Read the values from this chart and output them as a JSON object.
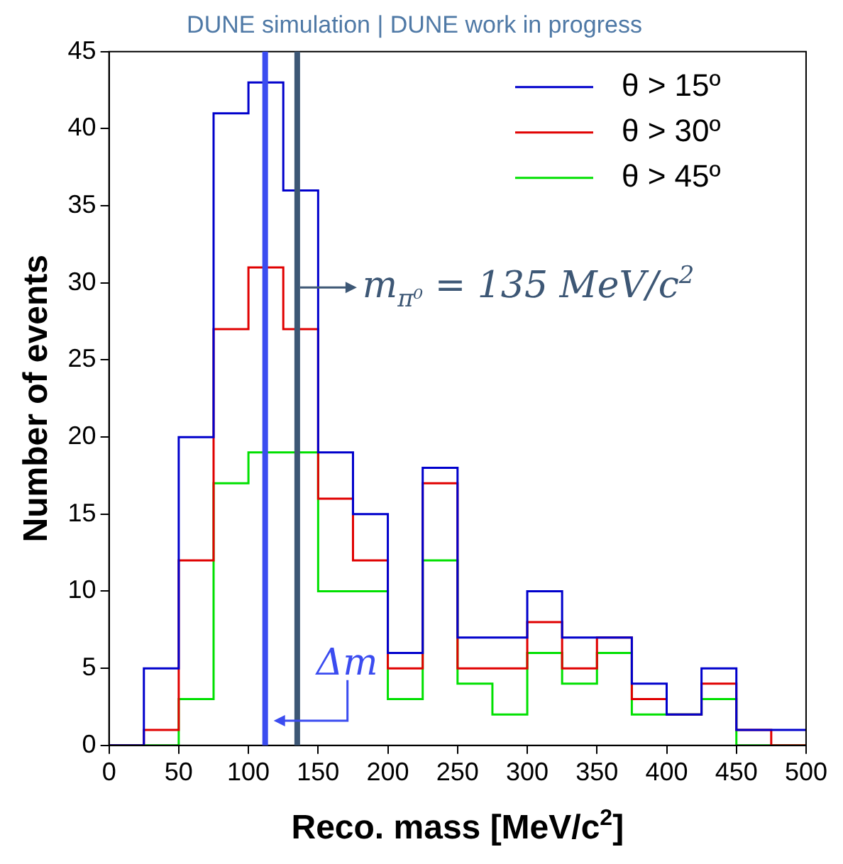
{
  "chart_data": {
    "type": "histogram",
    "title": "DUNE simulation | DUNE work in progress",
    "xlabel": "Reco. mass [MeV/c$^{2}$]",
    "ylabel": "Number of events",
    "bins": [
      0,
      25,
      50,
      75,
      100,
      125,
      150,
      175,
      200,
      225,
      250,
      275,
      300,
      325,
      350,
      375,
      400,
      425,
      450,
      475,
      500
    ],
    "series": [
      {
        "name": "θ > 15º",
        "color": "#0000cc",
        "values": [
          0,
          5,
          20,
          41,
          43,
          36,
          19,
          15,
          6,
          18,
          7,
          7,
          10,
          7,
          7,
          4,
          2,
          5,
          1,
          1
        ]
      },
      {
        "name": "θ > 30º",
        "color": "#e00000",
        "values": [
          0,
          1,
          12,
          27,
          31,
          27,
          16,
          12,
          5,
          17,
          5,
          5,
          8,
          5,
          7,
          3,
          2,
          4,
          1,
          0
        ]
      },
      {
        "name": "θ > 45º",
        "color": "#00e000",
        "values": [
          0,
          0,
          3,
          17,
          19,
          19,
          10,
          10,
          3,
          12,
          4,
          2,
          6,
          4,
          6,
          2,
          2,
          3,
          0,
          0
        ]
      }
    ],
    "xlim": [
      0,
      500
    ],
    "ylim": [
      0,
      45
    ],
    "xticks": [
      0,
      50,
      100,
      150,
      200,
      250,
      300,
      350,
      400,
      450,
      500
    ],
    "yticks": [
      0,
      5,
      10,
      15,
      20,
      25,
      30,
      35,
      40,
      45
    ],
    "grid": false,
    "legend": "top right",
    "ref_lines": [
      {
        "axis": "x",
        "value": 135,
        "label": "m$_{π⁰}$ = 135 MeV/c$^{2}$",
        "color": "#3d5775"
      },
      {
        "axis": "x",
        "value": 112,
        "label": "Δm",
        "color": "#3b4cf0"
      }
    ]
  }
}
